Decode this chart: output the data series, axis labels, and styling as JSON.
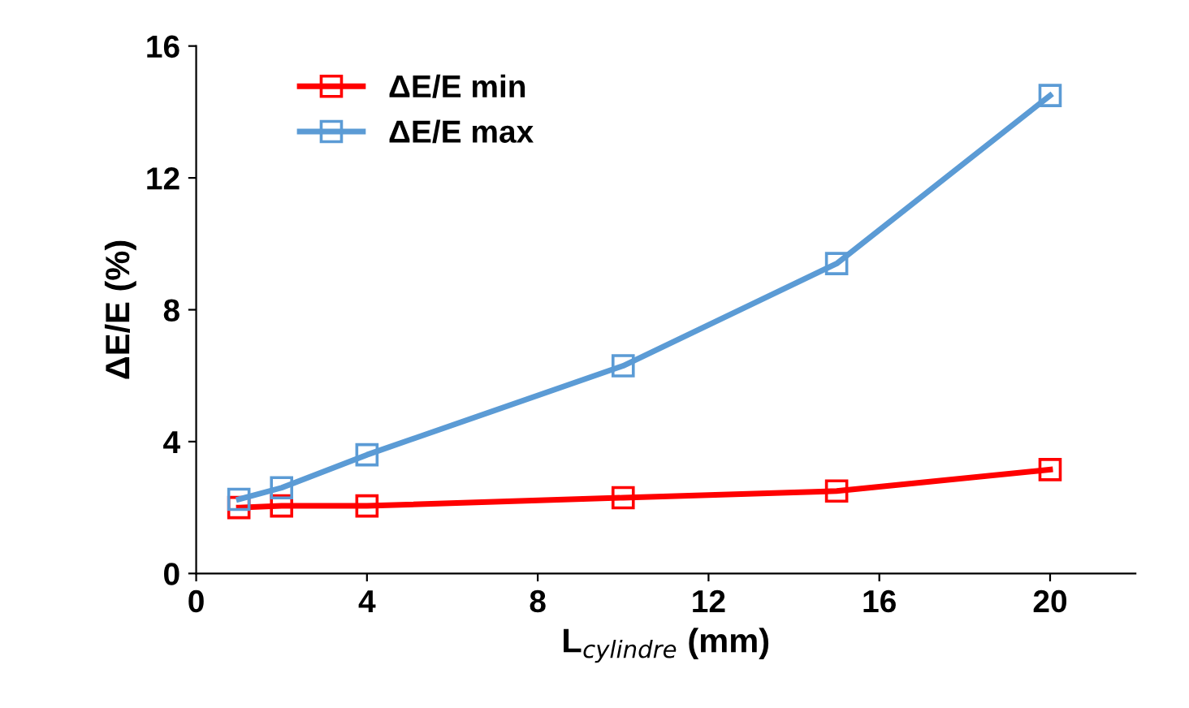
{
  "chart_data": {
    "type": "line",
    "xlabel": "L$_{cylindre}$ (mm)",
    "ylabel": "ΔE/E (%)",
    "x": [
      1,
      2,
      4,
      10,
      15,
      20
    ],
    "series": [
      {
        "name": "ΔE/E min",
        "color": "#ff0000",
        "values": [
          2.0,
          2.05,
          2.05,
          2.3,
          2.5,
          3.15
        ]
      },
      {
        "name": "ΔE/E max",
        "color": "#5b9bd5",
        "values": [
          2.25,
          2.6,
          3.6,
          6.3,
          9.4,
          14.5
        ]
      }
    ],
    "xlim": [
      0,
      22
    ],
    "xticks": [
      0,
      4,
      8,
      12,
      16,
      20
    ],
    "ylim": [
      0,
      16
    ],
    "yticks": [
      0,
      4,
      8,
      12,
      16
    ],
    "grid": false,
    "legend": "top left",
    "marker": "square",
    "line_style": "solid"
  }
}
